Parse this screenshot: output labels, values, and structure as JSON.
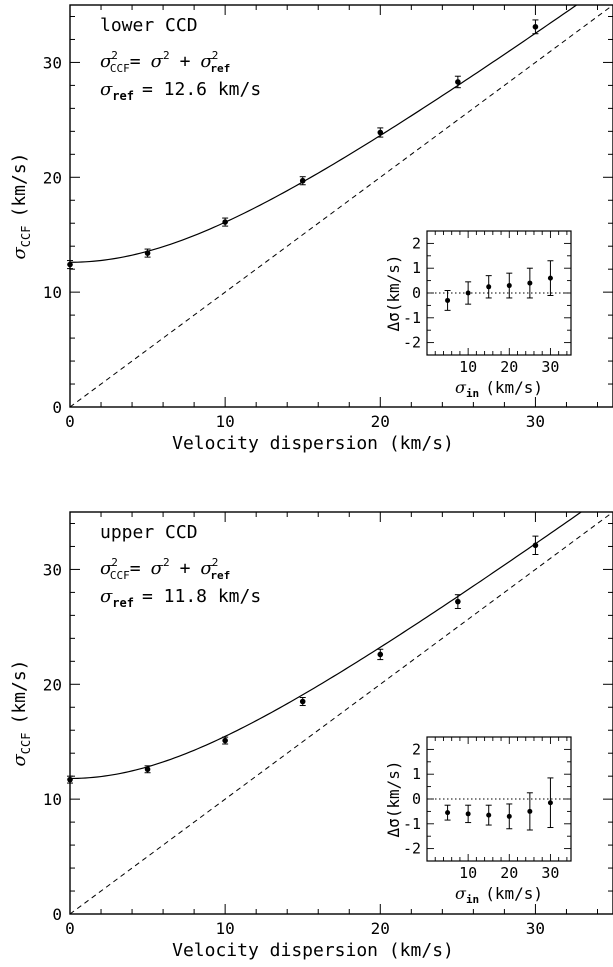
{
  "chart_data": [
    {
      "type": "scatter",
      "panel": "lower",
      "xlabel": "Velocity dispersion (km/s)",
      "ylabel_main": "σ",
      "ylabel_sub": "CCF",
      "ylabel_unit": "(km/s)",
      "xlim": [
        0,
        35
      ],
      "ylim": [
        0,
        35
      ],
      "x_ticks": [
        0,
        10,
        20,
        30
      ],
      "y_ticks": [
        0,
        10,
        20,
        30
      ],
      "annotations": {
        "label": "lower CCD",
        "formula_parts": [
          "σ",
          "2",
          "CCF",
          "=",
          "σ",
          "2",
          "+",
          "σ",
          "2",
          "ref"
        ],
        "sigma_ref_parts": [
          "σ",
          "ref",
          "= 12.6 km/s"
        ]
      },
      "sigma_ref": 12.6,
      "series": [
        {
          "kind": "points",
          "x": [
            0,
            5,
            10,
            15,
            20,
            25,
            30
          ],
          "y": [
            12.4,
            13.4,
            16.1,
            19.7,
            23.9,
            28.3,
            33.1
          ],
          "yerr": [
            0.35,
            0.35,
            0.35,
            0.35,
            0.4,
            0.5,
            0.6
          ]
        },
        {
          "kind": "curve",
          "formula": "sqrt(x^2 + sigma_ref^2)"
        },
        {
          "kind": "identity",
          "style": "dashed"
        }
      ],
      "inset": {
        "xlabel_main": "σ",
        "xlabel_sub": "in",
        "xlabel_unit": "(km/s)",
        "ylabel": "Δσ(km/s)",
        "xlim": [
          0,
          35
        ],
        "ylim": [
          -2.5,
          2.5
        ],
        "x_ticks": [
          10,
          20,
          30
        ],
        "y_ticks": [
          -2,
          -1,
          0,
          1,
          2
        ],
        "x": [
          5,
          10,
          15,
          20,
          25,
          30
        ],
        "y": [
          -0.3,
          0.0,
          0.25,
          0.3,
          0.4,
          0.6
        ],
        "yerr": [
          0.4,
          0.45,
          0.45,
          0.5,
          0.6,
          0.7
        ]
      }
    },
    {
      "type": "scatter",
      "panel": "upper",
      "xlabel": "Velocity dispersion (km/s)",
      "ylabel_main": "σ",
      "ylabel_sub": "CCF",
      "ylabel_unit": "(km/s)",
      "xlim": [
        0,
        35
      ],
      "ylim": [
        0,
        35
      ],
      "x_ticks": [
        0,
        10,
        20,
        30
      ],
      "y_ticks": [
        0,
        10,
        20,
        30
      ],
      "annotations": {
        "label": "upper CCD",
        "formula_parts": [
          "σ",
          "2",
          "CCF",
          "=",
          "σ",
          "2",
          "+",
          "σ",
          "2",
          "ref"
        ],
        "sigma_ref_parts": [
          "σ",
          "ref",
          "= 11.8 km/s"
        ]
      },
      "sigma_ref": 11.8,
      "series": [
        {
          "kind": "points",
          "x": [
            0,
            5,
            10,
            15,
            20,
            25,
            30
          ],
          "y": [
            11.7,
            12.6,
            15.1,
            18.5,
            22.6,
            27.2,
            32.1
          ],
          "yerr": [
            0.3,
            0.3,
            0.3,
            0.35,
            0.45,
            0.6,
            0.8
          ]
        },
        {
          "kind": "curve",
          "formula": "sqrt(x^2 + sigma_ref^2)"
        },
        {
          "kind": "identity",
          "style": "dashed"
        }
      ],
      "inset": {
        "xlabel_main": "σ",
        "xlabel_sub": "in",
        "xlabel_unit": "(km/s)",
        "ylabel": "Δσ(km/s)",
        "xlim": [
          0,
          35
        ],
        "ylim": [
          -2.5,
          2.5
        ],
        "x_ticks": [
          10,
          20,
          30
        ],
        "y_ticks": [
          -2,
          -1,
          0,
          1,
          2
        ],
        "x": [
          5,
          10,
          15,
          20,
          25,
          30
        ],
        "y": [
          -0.55,
          -0.6,
          -0.65,
          -0.7,
          -0.5,
          -0.15
        ],
        "yerr": [
          0.3,
          0.35,
          0.4,
          0.5,
          0.75,
          1.0
        ]
      }
    }
  ]
}
